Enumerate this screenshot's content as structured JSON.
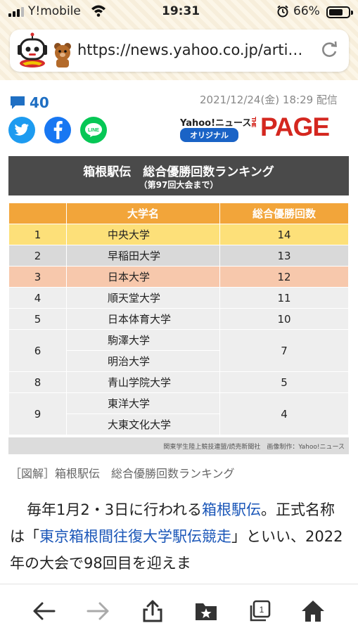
{
  "status": {
    "carrier": "Y!mobile",
    "time": "19:31",
    "battery": "66%"
  },
  "browser": {
    "url": "https://news.yahoo.co.jp/arti…"
  },
  "article": {
    "comment_count": "40",
    "date": "2021/12/24(金) 18:29 配信",
    "social": [
      "twitter-icon",
      "facebook-icon",
      "line-icon"
    ],
    "line_label": "LINE",
    "brand": {
      "yahoo": "Yahoo!ニュース",
      "orig": "オリジナル",
      "the": "THE",
      "page": "PAGE"
    },
    "figure": {
      "title": "箱根駅伝　総合優勝回数ランキング",
      "subtitle": "（第97回大会まで）",
      "headers": [
        "",
        "大学名",
        "総合優勝回数"
      ],
      "rows": [
        {
          "rank": "1",
          "names": [
            "中央大学"
          ],
          "count": "14"
        },
        {
          "rank": "2",
          "names": [
            "早稲田大学"
          ],
          "count": "13"
        },
        {
          "rank": "3",
          "names": [
            "日本大学"
          ],
          "count": "12"
        },
        {
          "rank": "4",
          "names": [
            "順天堂大学"
          ],
          "count": "11"
        },
        {
          "rank": "5",
          "names": [
            "日本体育大学"
          ],
          "count": "10"
        },
        {
          "rank": "6",
          "names": [
            "駒澤大学",
            "明治大学"
          ],
          "count": "7"
        },
        {
          "rank": "8",
          "names": [
            "青山学院大学"
          ],
          "count": "5"
        },
        {
          "rank": "9",
          "names": [
            "東洋大学",
            "大東文化大学"
          ],
          "count": "4"
        }
      ],
      "credit": "関東学生陸上競技連盟/読売新聞社　画像制作：Yahoo!ニュース"
    },
    "caption": "［図解］箱根駅伝　総合優勝回数ランキング",
    "body": {
      "p1a": "毎年1月2・3日に行われる",
      "link1": "箱根駅伝",
      "p1b": "。正式名称は「",
      "link2": "東京箱根間往復大学駅伝競走",
      "p1c": "」といい、2022年の大会で98回目を迎えま"
    }
  },
  "tabs_count": "1"
}
